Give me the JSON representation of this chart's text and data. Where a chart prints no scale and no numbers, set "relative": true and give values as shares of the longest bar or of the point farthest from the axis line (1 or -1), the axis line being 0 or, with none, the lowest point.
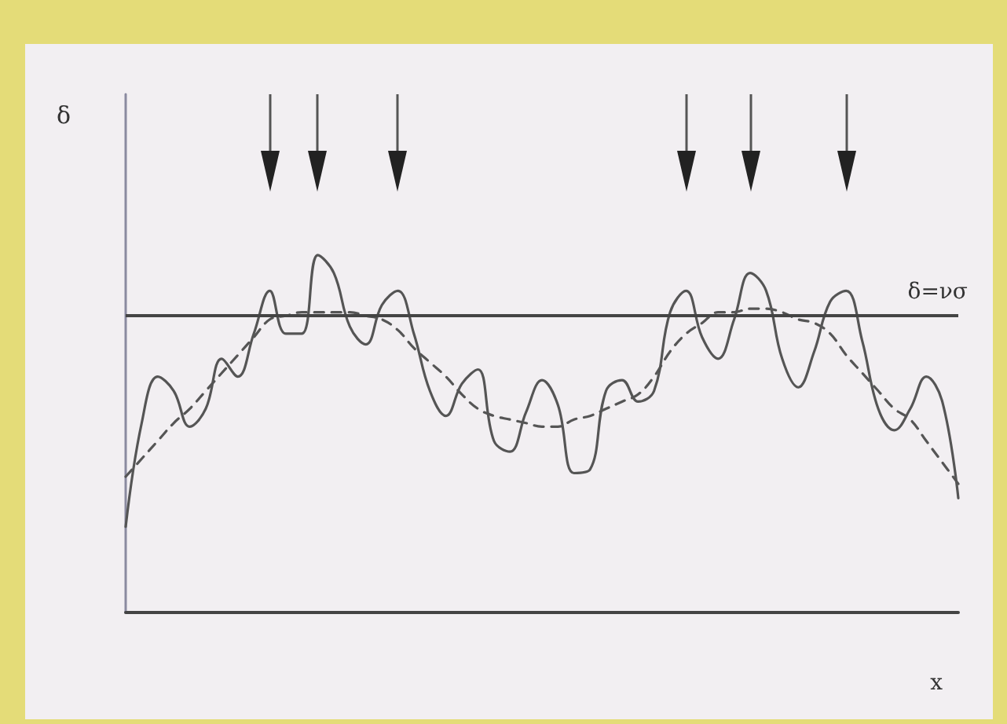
{
  "chart_data": {
    "type": "line",
    "relative": true,
    "xlabel": "x",
    "annotations": [
      "δ"
    ],
    "categories": [
      null,
      null,
      null,
      null,
      null,
      null,
      null,
      null,
      null,
      null,
      null,
      null,
      null,
      null,
      null,
      null,
      null,
      null,
      null,
      null,
      null,
      null,
      null,
      null,
      null,
      null,
      null,
      null,
      null,
      null,
      null,
      null,
      null,
      null,
      null,
      null,
      null,
      null,
      null,
      null,
      null,
      null,
      null,
      null,
      null,
      null,
      null,
      null,
      null,
      null,
      null,
      null,
      null
    ],
    "series": [
      {
        "color": "#555555",
        "line_style": "solid",
        "values": [
          0.24,
          0.53,
          0.66,
          0.62,
          0.52,
          0.57,
          0.71,
          0.66,
          0.78,
          0.9,
          0.78,
          0.78,
          1.0,
          0.95,
          0.8,
          0.75,
          0.86,
          0.9,
          0.78,
          0.62,
          0.55,
          0.64,
          0.68,
          0.48,
          0.45,
          0.56,
          0.65,
          0.58,
          0.39,
          0.4,
          0.62,
          0.65,
          0.59,
          0.62,
          0.84,
          0.9,
          0.77,
          0.71,
          0.82,
          0.95,
          0.9,
          0.71,
          0.63,
          0.73,
          0.87,
          0.9,
          0.76,
          0.57,
          0.51,
          0.57,
          0.66,
          0.59,
          0.32
        ]
      },
      {
        "color": "#555555",
        "line_style": "dashed",
        "values": [
          0.38,
          0.43,
          0.48,
          0.53,
          0.57,
          0.62,
          0.67,
          0.72,
          0.77,
          0.82,
          0.83,
          0.84,
          0.84,
          0.84,
          0.84,
          0.83,
          0.82,
          0.79,
          0.74,
          0.7,
          0.66,
          0.61,
          0.57,
          0.55,
          0.54,
          0.53,
          0.52,
          0.52,
          0.54,
          0.55,
          0.57,
          0.59,
          0.61,
          0.66,
          0.73,
          0.78,
          0.81,
          0.84,
          0.84,
          0.85,
          0.85,
          0.84,
          0.82,
          0.81,
          0.78,
          0.72,
          0.67,
          0.62,
          0.57,
          0.54,
          0.48,
          0.42,
          0.36
        ]
      }
    ],
    "ref_lines": [
      {
        "axis": "y",
        "value": 0.83,
        "label": "δ=νσ",
        "color": "#444444",
        "line_style": "solid"
      }
    ],
    "marker": "none",
    "grid": false
  }
}
